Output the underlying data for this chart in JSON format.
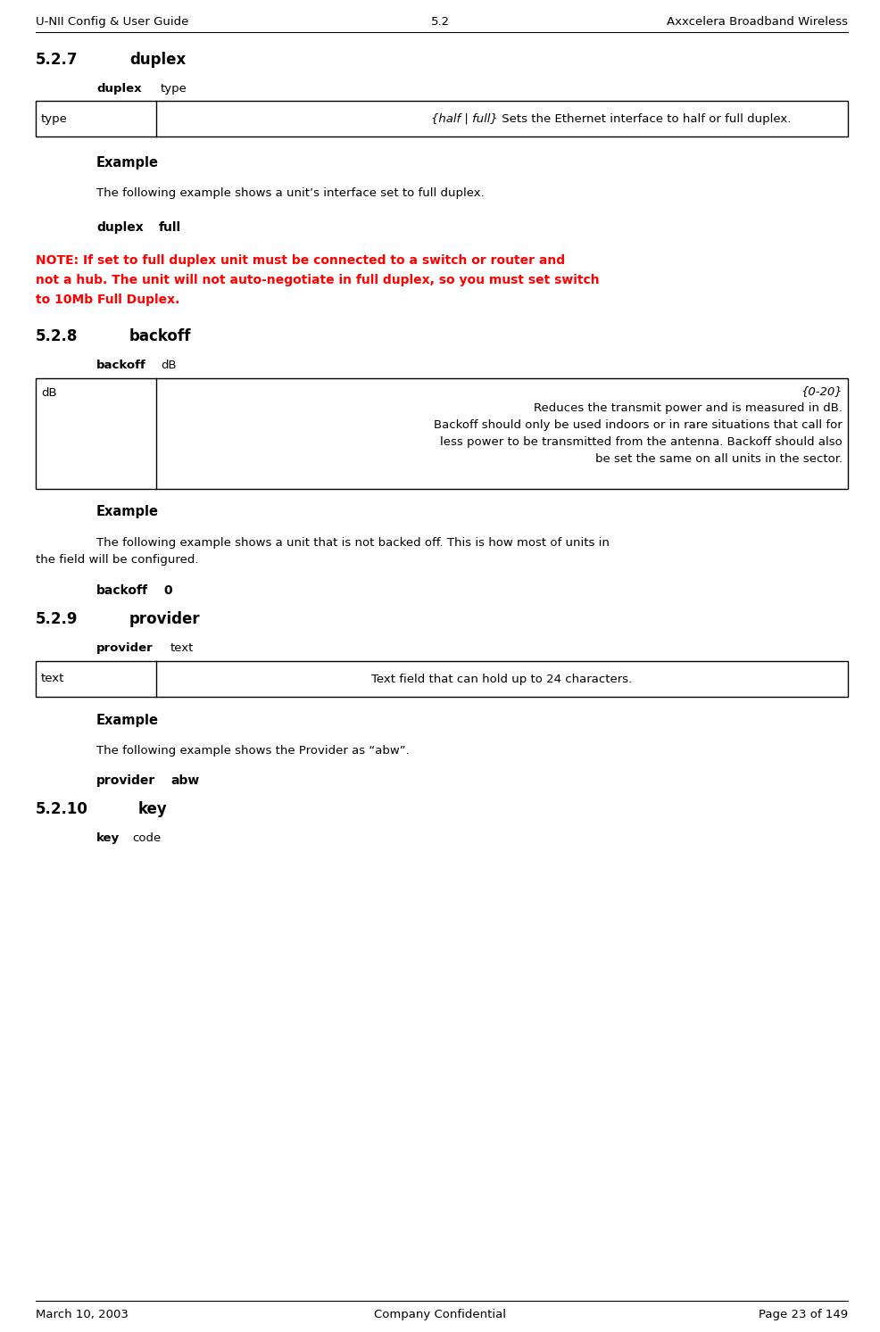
{
  "header_left": "U-NII Config & User Guide",
  "header_center": "5.2",
  "header_right": "Axxcelera Broadband Wireless",
  "bg_color": "#ffffff",
  "sections": [
    {
      "id": "527",
      "number": "5.2.7",
      "title": "duplex",
      "syntax_label": "duplex",
      "syntax_param": "type",
      "table_col1": "type",
      "table_col2_italic": "{half | full}",
      "table_col2_normal": " Sets the Ethernet interface to half or full duplex.",
      "example_label": "Example",
      "example_text": "The following example shows a unit’s interface set to full duplex.",
      "cmd1": "duplex",
      "cmd2": "full",
      "note_lines": [
        "NOTE: If set to full duplex unit must be connected to a switch or router and",
        "not a hub. The unit will not auto-negotiate in full duplex, so you must set switch",
        "to 10Mb Full Duplex."
      ],
      "note_color": "#ff0000"
    },
    {
      "id": "528",
      "number": "5.2.8",
      "title": "backoff",
      "syntax_label": "backoff",
      "syntax_param": "dB",
      "table_col1": "dB",
      "table_col2_italic": "{0-20}",
      "table_col2_lines": [
        " Reduces the transmit power and is measured in dB.",
        "Backoff should only be used indoors or in rare situations that call for",
        "less power to be transmitted from the antenna. Backoff should also",
        "be set the same on all units in the sector."
      ],
      "example_label": "Example",
      "example_line1": "The following example shows a unit that is not backed off. This is how most of units in",
      "example_line2": "the field will be configured.",
      "cmd1": "backoff",
      "cmd2": "0"
    },
    {
      "id": "529",
      "number": "5.2.9",
      "title": "provider",
      "syntax_label": "provider",
      "syntax_param": "text",
      "table_col1": "text",
      "table_col2_normal": "Text field that can hold up to 24 characters.",
      "example_label": "Example",
      "example_text": "The following example shows the Provider as “abw”.",
      "cmd1": "provider",
      "cmd2": "abw"
    },
    {
      "id": "5210",
      "number": "5.2.10",
      "title": "key",
      "syntax_label": "key",
      "syntax_param": "code"
    }
  ],
  "footer_left": "March 10, 2003",
  "footer_center": "Company Confidential",
  "footer_right": "Page 23 of 149"
}
